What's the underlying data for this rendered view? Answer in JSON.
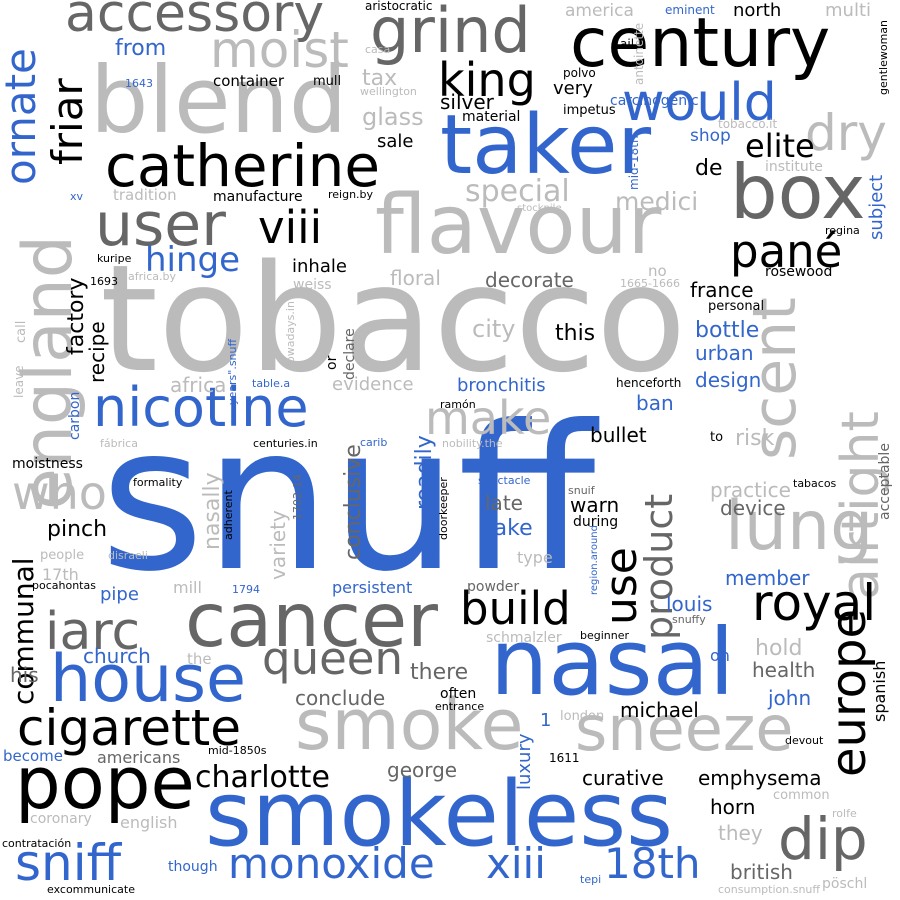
{
  "palette": {
    "black": "#000000",
    "dark_gray": "#666666",
    "light_gray": "#bbbbbb",
    "blue": "#3366cc"
  },
  "words": [
    {
      "text": "snuff",
      "color": "blue"
    },
    {
      "text": "tobacco",
      "color": "light_gray"
    },
    {
      "text": "nasal",
      "color": "blue"
    },
    {
      "text": "smokeless",
      "color": "blue"
    },
    {
      "text": "flavour",
      "color": "light_gray"
    },
    {
      "text": "blend",
      "color": "light_gray"
    },
    {
      "text": "taker",
      "color": "blue"
    },
    {
      "text": "century",
      "color": "black"
    },
    {
      "text": "box",
      "color": "dark_gray"
    },
    {
      "text": "cancer",
      "color": "dark_gray"
    },
    {
      "text": "england",
      "color": "light_gray"
    },
    {
      "text": "scent",
      "color": "light_gray"
    },
    {
      "text": "lung",
      "color": "light_gray"
    },
    {
      "text": "airtight",
      "color": "light_gray"
    },
    {
      "text": "smoke",
      "color": "light_gray"
    },
    {
      "text": "sneeze",
      "color": "light_gray"
    },
    {
      "text": "pope",
      "color": "black"
    },
    {
      "text": "house",
      "color": "blue"
    },
    {
      "text": "catherine",
      "color": "black"
    },
    {
      "text": "nicotine",
      "color": "blue"
    },
    {
      "text": "grind",
      "color": "dark_gray"
    },
    {
      "text": "accessory",
      "color": "dark_gray"
    },
    {
      "text": "user",
      "color": "dark_gray"
    },
    {
      "text": "cigarette",
      "color": "black"
    },
    {
      "text": "royal",
      "color": "black"
    },
    {
      "text": "europe",
      "color": "black"
    },
    {
      "text": "dip",
      "color": "dark_gray"
    },
    {
      "text": "moist",
      "color": "light_gray"
    },
    {
      "text": "would",
      "color": "blue"
    },
    {
      "text": "king",
      "color": "black"
    },
    {
      "text": "dry",
      "color": "light_gray"
    },
    {
      "text": "ornate",
      "color": "blue"
    },
    {
      "text": "friar",
      "color": "black"
    },
    {
      "text": "viii",
      "color": "black"
    },
    {
      "text": "pané",
      "color": "black"
    },
    {
      "text": "iarc",
      "color": "dark_gray"
    },
    {
      "text": "queen",
      "color": "dark_gray"
    },
    {
      "text": "build",
      "color": "black"
    },
    {
      "text": "use",
      "color": "black"
    },
    {
      "text": "product",
      "color": "dark_gray"
    },
    {
      "text": "sniff",
      "color": "blue"
    },
    {
      "text": "monoxide",
      "color": "blue"
    },
    {
      "text": "xiii",
      "color": "blue"
    },
    {
      "text": "18th",
      "color": "blue"
    },
    {
      "text": "who",
      "color": "light_gray"
    },
    {
      "text": "make",
      "color": "light_gray"
    },
    {
      "text": "elite",
      "color": "black"
    },
    {
      "text": "hinge",
      "color": "blue"
    },
    {
      "text": "charlotte",
      "color": "black"
    },
    {
      "text": "communal",
      "color": "black"
    },
    {
      "text": "special",
      "color": "light_gray"
    },
    {
      "text": "medici",
      "color": "light_gray"
    },
    {
      "text": "silver",
      "color": "black"
    },
    {
      "text": "glass",
      "color": "light_gray"
    },
    {
      "text": "tax",
      "color": "light_gray"
    },
    {
      "text": "from",
      "color": "blue"
    },
    {
      "text": "container",
      "color": "black"
    },
    {
      "text": "sale",
      "color": "black"
    },
    {
      "text": "very",
      "color": "black"
    },
    {
      "text": "carcinogenic",
      "color": "blue"
    },
    {
      "text": "north",
      "color": "black"
    },
    {
      "text": "multi",
      "color": "light_gray"
    },
    {
      "text": "america",
      "color": "light_gray"
    },
    {
      "text": "eminent",
      "color": "blue"
    },
    {
      "text": "aristocratic",
      "color": "black"
    },
    {
      "text": "casa",
      "color": "light_gray"
    },
    {
      "text": "mull",
      "color": "black"
    },
    {
      "text": "wellington",
      "color": "light_gray"
    },
    {
      "text": "1643",
      "color": "blue"
    },
    {
      "text": "polvo",
      "color": "black"
    },
    {
      "text": "ail",
      "color": "black"
    },
    {
      "text": "antoinette",
      "color": "light_gray"
    },
    {
      "text": "gentlewoman",
      "color": "black"
    },
    {
      "text": "material",
      "color": "black"
    },
    {
      "text": "impetus",
      "color": "black"
    },
    {
      "text": "mid-18th",
      "color": "blue"
    },
    {
      "text": "shop",
      "color": "blue"
    },
    {
      "text": "tobacco.it",
      "color": "light_gray"
    },
    {
      "text": "institute",
      "color": "light_gray"
    },
    {
      "text": "subject",
      "color": "blue"
    },
    {
      "text": "de",
      "color": "black"
    },
    {
      "text": "tradition",
      "color": "light_gray"
    },
    {
      "text": "manufacture",
      "color": "black"
    },
    {
      "text": "reign.by",
      "color": "black"
    },
    {
      "text": "xv",
      "color": "blue"
    },
    {
      "text": "stockpile",
      "color": "light_gray"
    },
    {
      "text": "regina",
      "color": "black"
    },
    {
      "text": "tabacos",
      "color": "black"
    },
    {
      "text": "inhale",
      "color": "black"
    },
    {
      "text": "floral",
      "color": "light_gray"
    },
    {
      "text": "decorate",
      "color": "dark_gray"
    },
    {
      "text": "france",
      "color": "black"
    },
    {
      "text": "rosewood",
      "color": "black"
    },
    {
      "text": "personal",
      "color": "black"
    },
    {
      "text": "factory",
      "color": "black"
    },
    {
      "text": "recipe",
      "color": "black"
    },
    {
      "text": "kuripe",
      "color": "black"
    },
    {
      "text": "1693",
      "color": "black"
    },
    {
      "text": "africa.by",
      "color": "light_gray"
    },
    {
      "text": "weiss",
      "color": "light_gray"
    },
    {
      "text": "1665-1666",
      "color": "light_gray"
    },
    {
      "text": "no",
      "color": "light_gray"
    },
    {
      "text": "city",
      "color": "light_gray"
    },
    {
      "text": "this",
      "color": "black"
    },
    {
      "text": "bottle",
      "color": "blue"
    },
    {
      "text": "urban",
      "color": "blue"
    },
    {
      "text": "design",
      "color": "blue"
    },
    {
      "text": "call",
      "color": "light_gray"
    },
    {
      "text": "nowadays.in",
      "color": "light_gray"
    },
    {
      "text": "declare",
      "color": "dark_gray"
    },
    {
      "text": "or",
      "color": "black"
    },
    {
      "text": "years\".snuff",
      "color": "blue"
    },
    {
      "text": "africa",
      "color": "light_gray"
    },
    {
      "text": "table.a",
      "color": "blue"
    },
    {
      "text": "evidence",
      "color": "light_gray"
    },
    {
      "text": "bronchitis",
      "color": "blue"
    },
    {
      "text": "henceforth",
      "color": "black"
    },
    {
      "text": "ban",
      "color": "blue"
    },
    {
      "text": "leave",
      "color": "light_gray"
    },
    {
      "text": "carbon",
      "color": "blue"
    },
    {
      "text": "ramón",
      "color": "black"
    },
    {
      "text": "bullet",
      "color": "black"
    },
    {
      "text": "risk",
      "color": "light_gray"
    },
    {
      "text": "to",
      "color": "black"
    },
    {
      "text": "fábrica",
      "color": "light_gray"
    },
    {
      "text": "centuries.in",
      "color": "black"
    },
    {
      "text": "carib",
      "color": "blue"
    },
    {
      "text": "nobility.the",
      "color": "light_gray"
    },
    {
      "text": "acceptable",
      "color": "dark_gray"
    },
    {
      "text": "moistness",
      "color": "black"
    },
    {
      "text": "readily",
      "color": "blue"
    },
    {
      "text": "conclusive",
      "color": "dark_gray"
    },
    {
      "text": "doorkeeper",
      "color": "black"
    },
    {
      "text": "spectacle",
      "color": "blue"
    },
    {
      "text": "late",
      "color": "dark_gray"
    },
    {
      "text": "snuif",
      "color": "dark_gray"
    },
    {
      "text": "practice",
      "color": "light_gray"
    },
    {
      "text": "device",
      "color": "dark_gray"
    },
    {
      "text": "formality",
      "color": "black"
    },
    {
      "text": "adherent",
      "color": "black"
    },
    {
      "text": "1702-14",
      "color": "dark_gray"
    },
    {
      "text": "variety",
      "color": "light_gray"
    },
    {
      "text": "nasally",
      "color": "light_gray"
    },
    {
      "text": "warn",
      "color": "black"
    },
    {
      "text": "take",
      "color": "blue"
    },
    {
      "text": "during",
      "color": "black"
    },
    {
      "text": "pinch",
      "color": "black"
    },
    {
      "text": "people",
      "color": "light_gray"
    },
    {
      "text": "disraeli",
      "color": "light_gray"
    },
    {
      "text": "17th",
      "color": "light_gray"
    },
    {
      "text": "type",
      "color": "light_gray"
    },
    {
      "text": "region.around",
      "color": "blue"
    },
    {
      "text": "member",
      "color": "blue"
    },
    {
      "text": "pocahontas",
      "color": "black"
    },
    {
      "text": "pipe",
      "color": "blue"
    },
    {
      "text": "mill",
      "color": "light_gray"
    },
    {
      "text": "1794",
      "color": "blue"
    },
    {
      "text": "persistent",
      "color": "blue"
    },
    {
      "text": "powder",
      "color": "dark_gray"
    },
    {
      "text": "louis",
      "color": "blue"
    },
    {
      "text": "snuffy",
      "color": "dark_gray"
    },
    {
      "text": "church",
      "color": "blue"
    },
    {
      "text": "the",
      "color": "light_gray"
    },
    {
      "text": "schmalzler",
      "color": "light_gray"
    },
    {
      "text": "beginner",
      "color": "black"
    },
    {
      "text": "hold",
      "color": "light_gray"
    },
    {
      "text": "on",
      "color": "blue"
    },
    {
      "text": "health",
      "color": "dark_gray"
    },
    {
      "text": "his",
      "color": "dark_gray"
    },
    {
      "text": "there",
      "color": "dark_gray"
    },
    {
      "text": "conclude",
      "color": "dark_gray"
    },
    {
      "text": "often",
      "color": "black"
    },
    {
      "text": "entrance",
      "color": "black"
    },
    {
      "text": "john",
      "color": "blue"
    },
    {
      "text": "spanish",
      "color": "black"
    },
    {
      "text": "1",
      "color": "blue"
    },
    {
      "text": "michael",
      "color": "black"
    },
    {
      "text": "london",
      "color": "light_gray"
    },
    {
      "text": "devout",
      "color": "black"
    },
    {
      "text": "luxury",
      "color": "blue"
    },
    {
      "text": "americans",
      "color": "dark_gray"
    },
    {
      "text": "mid-1850s",
      "color": "black"
    },
    {
      "text": "become",
      "color": "blue"
    },
    {
      "text": "1611",
      "color": "black"
    },
    {
      "text": "george",
      "color": "dark_gray"
    },
    {
      "text": "curative",
      "color": "black"
    },
    {
      "text": "emphysema",
      "color": "black"
    },
    {
      "text": "common",
      "color": "light_gray"
    },
    {
      "text": "horn",
      "color": "black"
    },
    {
      "text": "rolfe",
      "color": "light_gray"
    },
    {
      "text": "coronary",
      "color": "light_gray"
    },
    {
      "text": "english",
      "color": "light_gray"
    },
    {
      "text": "they",
      "color": "light_gray"
    },
    {
      "text": "contratación",
      "color": "black"
    },
    {
      "text": "though",
      "color": "blue"
    },
    {
      "text": "british",
      "color": "dark_gray"
    },
    {
      "text": "tepi",
      "color": "blue"
    },
    {
      "text": "excommunicate",
      "color": "black"
    },
    {
      "text": "consumption.snuff",
      "color": "light_gray"
    },
    {
      "text": "pöschl",
      "color": "light_gray"
    }
  ]
}
